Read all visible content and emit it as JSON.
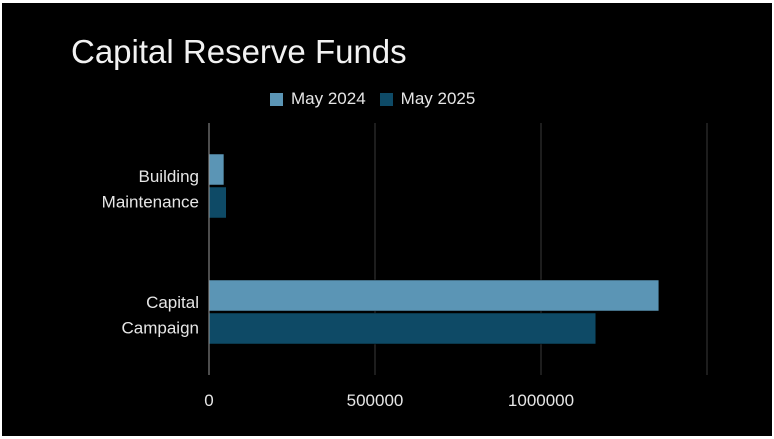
{
  "chart_data": {
    "type": "bar",
    "orientation": "horizontal",
    "title": "Capital Reserve Funds",
    "categories": [
      [
        "Building",
        "Maintenance"
      ],
      [
        "Capital",
        "Campaign"
      ]
    ],
    "series": [
      {
        "name": "May 2024",
        "color": "#5b95b5",
        "values": [
          45000,
          1355000
        ]
      },
      {
        "name": "May 2025",
        "color": "#0e4a66",
        "values": [
          52000,
          1165000
        ]
      }
    ],
    "xticks": [
      "0",
      "500000",
      "1000000"
    ],
    "xlim": [
      0,
      1500000
    ],
    "grid": true,
    "legend": "top-center",
    "xlabel": "",
    "ylabel": ""
  },
  "colors": {
    "background": "#000000",
    "text": "#e6e6e6",
    "grid": "#3a3a3a"
  }
}
